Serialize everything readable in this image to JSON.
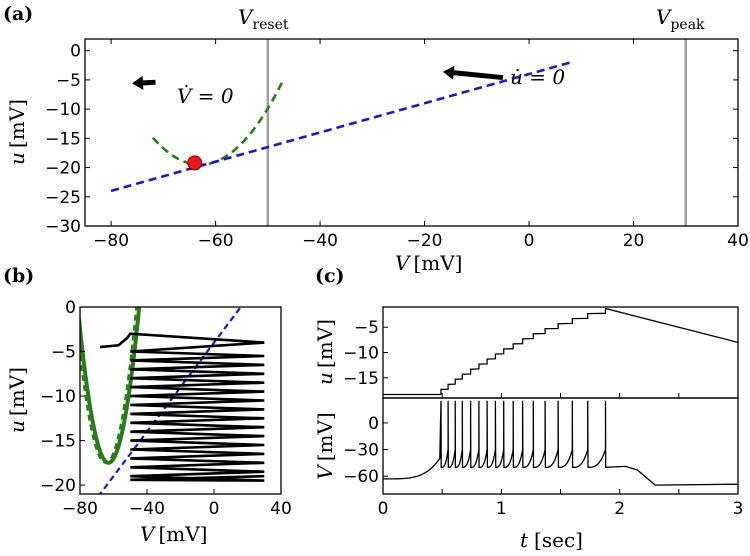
{
  "chart_data": [
    {
      "panel": "a",
      "panel_label": "(a)",
      "type": "line",
      "xlim": [
        -85,
        40
      ],
      "ylim": [
        -30,
        2
      ],
      "xticks": [
        -80,
        -60,
        -40,
        -20,
        0,
        20,
        40
      ],
      "yticks": [
        0,
        -5,
        -10,
        -15,
        -20,
        -25,
        -30
      ],
      "xlabel_var": "V",
      "xlabel_unit": "[mV]",
      "ylabel_var": "u",
      "ylabel_unit": "[mV]",
      "vlines": [
        {
          "name": "V_reset",
          "label_main": "V",
          "label_sub": "reset",
          "x": -50,
          "color": "#a0a0a0"
        },
        {
          "name": "V_peak",
          "label_main": "V",
          "label_sub": "peak",
          "x": 30,
          "color": "#a0a0a0"
        }
      ],
      "series": [
        {
          "name": "V-nullcline",
          "style": "dashed",
          "color": "#2a7a1a",
          "vertex": [
            -63,
            -19.5
          ],
          "curvature": 0.057,
          "x_range": [
            -72,
            -47
          ]
        },
        {
          "name": "u-nullcline",
          "style": "dashed",
          "color": "#1a1ab5",
          "slope": 0.25,
          "intercept": -4,
          "x_range": [
            -80,
            8
          ]
        }
      ],
      "fixed_point": {
        "x": -64,
        "y": -19.2,
        "color": "#e61a1a"
      },
      "annotations": [
        {
          "text": "V̇ = 0",
          "x": -73,
          "y": -4.6
        },
        {
          "text": "u̇ = 0",
          "x": -3,
          "y": -2.9
        }
      ],
      "arrows": [
        {
          "from": [
            -71.5,
            -5.4
          ],
          "to": [
            -76,
            -5.6
          ]
        },
        {
          "from": [
            -5,
            -4.6
          ],
          "to": [
            -16.5,
            -3.6
          ]
        }
      ]
    },
    {
      "panel": "b",
      "panel_label": "(b)",
      "type": "line",
      "xlim": [
        -80,
        40
      ],
      "ylim": [
        -21,
        0
      ],
      "xticks": [
        -80,
        -40,
        0,
        40
      ],
      "yticks": [
        0,
        -5,
        -10,
        -15,
        -20
      ],
      "xlabel_var": "V",
      "xlabel_unit": "[mV]",
      "ylabel_var": "u",
      "ylabel_unit": "[mV]",
      "series": [
        {
          "name": "V-nullcline dashed",
          "style": "dashed",
          "color": "#2a7a1a",
          "vertex": [
            -63,
            -17.5
          ],
          "curvature": 0.052
        },
        {
          "name": "V-nullcline solid",
          "style": "solid",
          "color": "#2a7a1a",
          "vertex": [
            -63,
            -17.5
          ],
          "curvature": 0.052
        },
        {
          "name": "u-nullcline",
          "style": "dashed",
          "color": "#1a1ab5",
          "slope": 0.25,
          "intercept": -4
        },
        {
          "name": "trajectory",
          "style": "solid",
          "color": "#000000"
        }
      ],
      "trajectory": {
        "start": [
          -68,
          -4.5
        ],
        "bump": [
          -57,
          -4.3
        ],
        "v_reset": -50,
        "v_peak": 30,
        "u_levels": [
          -19.0,
          -18.0,
          -17.0,
          -16.0,
          -15.0,
          -14.0,
          -13.0,
          -12.0,
          -11.0,
          -10.0,
          -9.0,
          -8.0,
          -7.0,
          -6.0,
          -5.0,
          -4.0
        ]
      }
    },
    {
      "panel": "c",
      "panel_label": "(c)",
      "type": "line",
      "xlim": [
        0,
        3
      ],
      "xticks": [
        0,
        0.5,
        1,
        1.5,
        2,
        2.5,
        3
      ],
      "xtick_labels": [
        "0",
        "",
        "1",
        "",
        "2",
        "",
        "3"
      ],
      "xlabel_var": "t",
      "xlabel_unit": "[sec]",
      "top": {
        "ylim": [
          -19,
          -1
        ],
        "yticks": [
          -5,
          -10,
          -15
        ],
        "ylabel_var": "u",
        "ylabel_unit": "[mV]",
        "baseline": -18.3,
        "onset": 0.48,
        "jump": 1.0,
        "last_spike": 1.88,
        "end_value": -8
      },
      "bottom": {
        "ylim": [
          -80,
          28
        ],
        "yticks": [
          0,
          -30,
          -60
        ],
        "ylabel_var": "V",
        "ylabel_unit": "[mV]",
        "rest_start": -63,
        "spike_peak": 25,
        "reset": -50,
        "plateau": -50,
        "plateau_end": 2.2,
        "final": -70,
        "spike_times": [
          0.49,
          0.55,
          0.61,
          0.67,
          0.74,
          0.81,
          0.88,
          0.95,
          1.02,
          1.1,
          1.18,
          1.27,
          1.37,
          1.48,
          1.6,
          1.73,
          1.88
        ]
      }
    }
  ]
}
